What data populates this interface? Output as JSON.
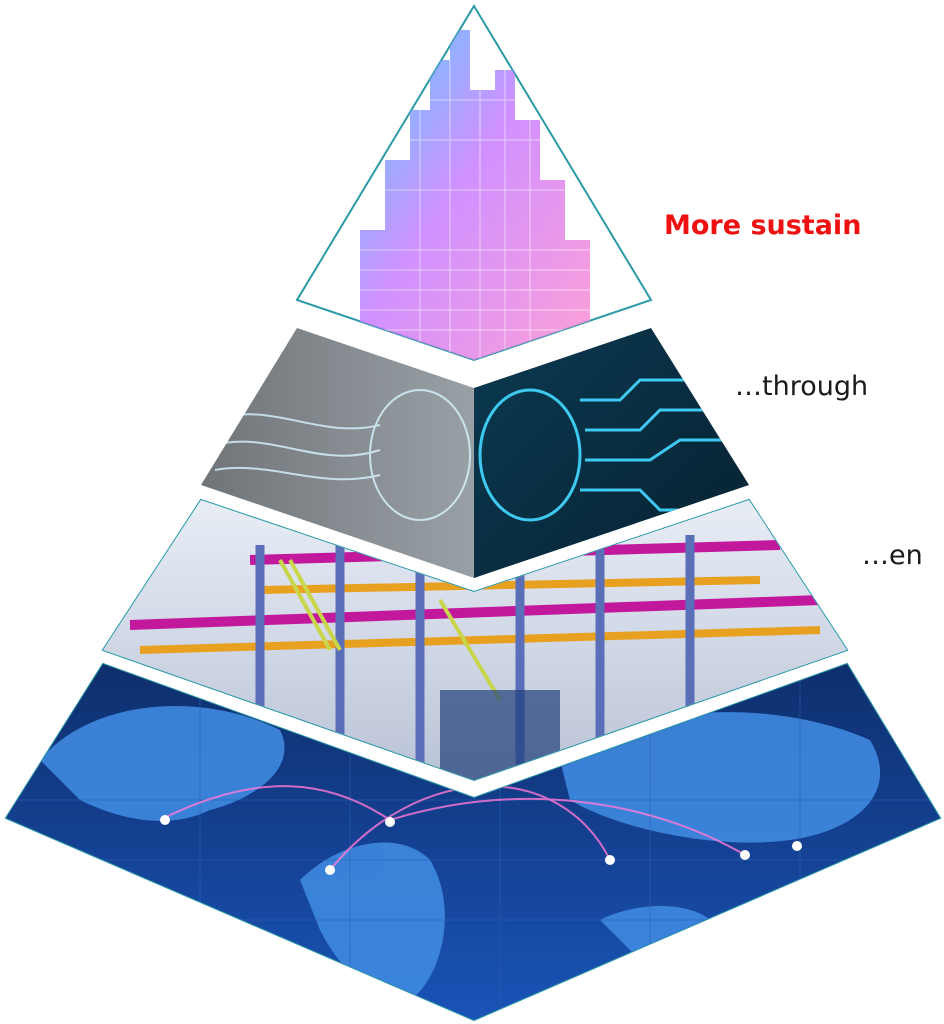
{
  "captions": {
    "top": "More sustain",
    "second": "…through",
    "third": "…en"
  },
  "colors": {
    "caption_accent": "#ee1111",
    "caption_text": "#1a1a1a",
    "outline": "#2a9aa8"
  },
  "layers": [
    {
      "name": "skyscraper-city",
      "icon": "skyscraper-icon"
    },
    {
      "name": "brain-circuit",
      "icon": "brain-circuit-icon"
    },
    {
      "name": "steel-structure",
      "icon": "steel-frame-icon"
    },
    {
      "name": "world-network",
      "icon": "globe-network-icon"
    }
  ]
}
